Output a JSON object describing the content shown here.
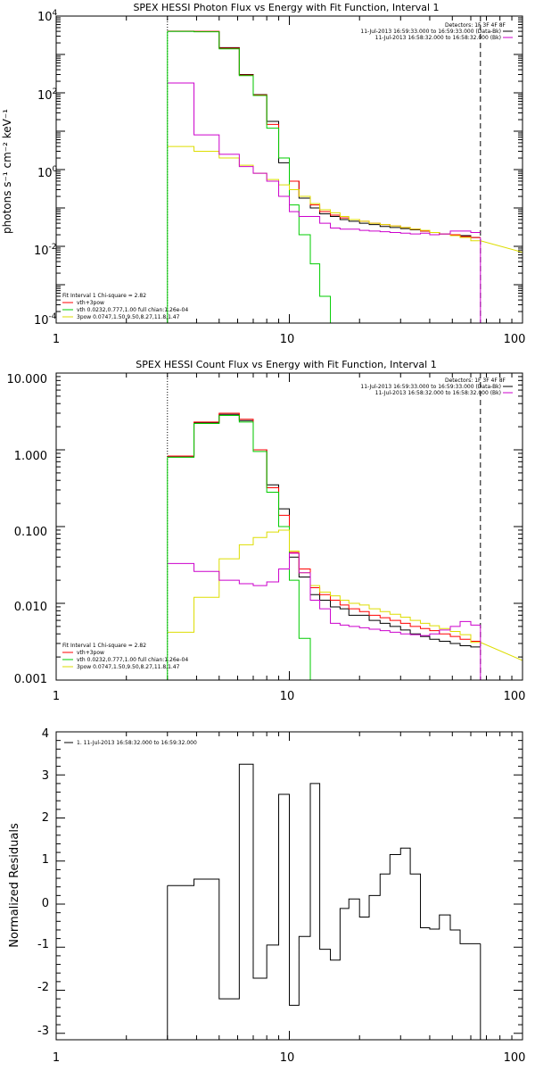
{
  "chart_data": [
    {
      "type": "line",
      "title": "SPEX HESSI Photon Flux vs Energy with Fit Function, Interval 1",
      "ylabel": "photons s⁻¹ cm⁻² keV⁻¹",
      "xlabel": "",
      "x_scale": "log",
      "y_scale": "log",
      "xlim": [
        1,
        100
      ],
      "ylim": [
        0.0001,
        10000
      ],
      "x_ticks": [
        "1",
        "10",
        "100"
      ],
      "y_ticks": [
        {
          "value": 0.0001,
          "base": "10",
          "exp": "-4"
        },
        {
          "value": 0.01,
          "base": "10",
          "exp": "-2"
        },
        {
          "value": 1,
          "base": "10",
          "exp": "0"
        },
        {
          "value": 100,
          "base": "10",
          "exp": "2"
        },
        {
          "value": 10000,
          "base": "10",
          "exp": "4"
        }
      ],
      "vlines": [
        {
          "x": 3.0,
          "style": "dotted",
          "color": "#000000"
        },
        {
          "x": 66.0,
          "style": "dashed",
          "color": "#000000"
        }
      ],
      "legend_top": {
        "position": "top-right",
        "entries": [
          {
            "text": "Detectors: 1F 3F 4F 8F",
            "color": null
          },
          {
            "text": "11-Jul-2013 16:59:33.000 to 16:59:33.000 (Data-Bk)",
            "color": "#000000"
          },
          {
            "text": "11-Jul-2013 16:58:32.000 to 16:58:32.000 (Bk)",
            "color": "#cc00cc"
          }
        ]
      },
      "legend_bottom": {
        "position": "bottom-left",
        "entries": [
          {
            "text": "Fit Interval 1    Chi-square = 2.82",
            "color": null
          },
          {
            "text": "vth+3pow",
            "color": "#ff0000"
          },
          {
            "text": "vth 0.0232,0.777,1.00   full chian:1.26e-04",
            "color": "#00cc00"
          },
          {
            "text": "3pow 0.0747,1.50,9.50,8.27,11.8,1.47",
            "color": "#dddd00"
          }
        ]
      },
      "bin_edges": [
        3.0,
        3.9,
        5.0,
        6.1,
        7.0,
        8.0,
        9.0,
        10.0,
        11.0,
        12.3,
        13.5,
        15.0,
        16.5,
        18.0,
        20.0,
        22.0,
        24.5,
        27.0,
        30.0,
        33.0,
        36.5,
        40.0,
        44.0,
        49.0,
        54.0,
        60.0,
        66.0
      ],
      "series": [
        {
          "color": "#000000",
          "values": [
            4000,
            3950,
            1500,
            300,
            90,
            18,
            1.5,
            0.5,
            0.18,
            0.1,
            0.07,
            0.06,
            0.05,
            0.045,
            0.04,
            0.037,
            0.033,
            0.031,
            0.029,
            0.027,
            0.025,
            0.023,
            0.021,
            0.02,
            0.019,
            0.017
          ]
        },
        {
          "color": "#ff0000",
          "values": [
            4050,
            4000,
            1450,
            290,
            88,
            15,
            2.0,
            0.5,
            0.2,
            0.12,
            0.08,
            0.065,
            0.055,
            0.05,
            0.045,
            0.04,
            0.037,
            0.034,
            0.031,
            0.028,
            0.025,
            0.023,
            0.021,
            0.02,
            0.018,
            0.017
          ]
        },
        {
          "color": "#00cc00",
          "values": [
            4000,
            3900,
            1400,
            280,
            85,
            12,
            2.0,
            0.12,
            0.02,
            0.0035,
            0.0005,
            null,
            null,
            null,
            null,
            null,
            null,
            null,
            null,
            null,
            null,
            null,
            null,
            null,
            null,
            null
          ]
        },
        {
          "color": "#dddd00",
          "values": [
            4.0,
            3.0,
            2.0,
            1.3,
            0.8,
            0.55,
            0.4,
            0.3,
            0.2,
            0.13,
            0.09,
            0.075,
            0.06,
            0.05,
            0.045,
            0.04,
            0.037,
            0.034,
            0.031,
            0.028,
            0.026,
            0.023,
            0.021,
            0.019,
            0.017,
            0.014
          ]
        },
        {
          "color": "#cc00cc",
          "values": [
            180,
            8,
            2.5,
            1.2,
            0.8,
            0.5,
            0.2,
            0.08,
            0.06,
            0.06,
            0.04,
            0.03,
            0.028,
            0.028,
            0.026,
            0.025,
            0.024,
            0.023,
            0.022,
            0.021,
            0.022,
            0.02,
            0.021,
            0.025,
            0.025,
            0.023
          ]
        }
      ],
      "tail": {
        "from": 66.0,
        "to": 100.0,
        "color": "#dddd00",
        "y_from": 0.014,
        "y_to": 0.007
      },
      "drops": [
        {
          "x": 66.0,
          "y": 0.017,
          "color": "#cc00cc"
        },
        {
          "x": 3.0,
          "y": 4000,
          "color": "#00cc00"
        }
      ]
    },
    {
      "type": "line",
      "title": "SPEX HESSI Count Flux vs Energy with Fit Function, Interval 1",
      "ylabel": "",
      "xlabel": "",
      "x_scale": "log",
      "y_scale": "log",
      "xlim": [
        1,
        100
      ],
      "ylim": [
        0.001,
        10.0
      ],
      "x_ticks": [
        "1",
        "10",
        "100"
      ],
      "y_ticks": [
        {
          "value": 0.001,
          "label": "0.001"
        },
        {
          "value": 0.01,
          "label": "0.010"
        },
        {
          "value": 0.1,
          "label": "0.100"
        },
        {
          "value": 1,
          "label": "1.000"
        },
        {
          "value": 10,
          "label": "10.000"
        }
      ],
      "vlines": [
        {
          "x": 3.0,
          "style": "dotted",
          "color": "#000000"
        },
        {
          "x": 66.0,
          "style": "dashed",
          "color": "#000000"
        }
      ],
      "legend_top": {
        "position": "top-right",
        "entries": [
          {
            "text": "Detectors: 1F 3F 4F 8F",
            "color": null
          },
          {
            "text": "11-Jul-2013 16:59:33.000 to 16:59:33.000 (Data-Bk)",
            "color": "#000000"
          },
          {
            "text": "11-Jul-2013 16:58:32.000 to 16:58:32.000 (Bk)",
            "color": "#cc00cc"
          }
        ]
      },
      "legend_bottom": {
        "position": "bottom-left",
        "entries": [
          {
            "text": "Fit Interval 1    Chi-square = 2.82",
            "color": null
          },
          {
            "text": "vth+3pow",
            "color": "#ff0000"
          },
          {
            "text": "vth 0.0232,0.777,1.00   full chian:1.26e-04",
            "color": "#00cc00"
          },
          {
            "text": "3pow 0.0747,1.50,9.50,8.27,11.8,1.47",
            "color": "#dddd00"
          }
        ]
      },
      "bin_edges": [
        3.0,
        3.9,
        5.0,
        6.1,
        7.0,
        8.0,
        9.0,
        10.0,
        11.0,
        12.3,
        13.5,
        15.0,
        16.5,
        18.0,
        20.0,
        22.0,
        24.5,
        27.0,
        30.0,
        33.0,
        36.5,
        40.0,
        44.0,
        49.0,
        54.0,
        60.0,
        66.0
      ],
      "series": [
        {
          "color": "#000000",
          "values": [
            0.82,
            2.25,
            2.9,
            2.4,
            1.0,
            0.35,
            0.17,
            0.04,
            0.022,
            0.013,
            0.011,
            0.009,
            0.0085,
            0.007,
            0.007,
            0.006,
            0.0055,
            0.005,
            0.0045,
            0.004,
            0.0037,
            0.0034,
            0.0032,
            0.003,
            0.0028,
            0.0027
          ]
        },
        {
          "color": "#ff0000",
          "values": [
            0.83,
            2.3,
            3.0,
            2.5,
            1.0,
            0.32,
            0.14,
            0.046,
            0.028,
            0.016,
            0.013,
            0.011,
            0.0095,
            0.0085,
            0.0078,
            0.007,
            0.0065,
            0.006,
            0.0055,
            0.005,
            0.0047,
            0.0044,
            0.004,
            0.0037,
            0.0034,
            0.0032
          ]
        },
        {
          "color": "#00cc00",
          "values": [
            0.8,
            2.2,
            2.8,
            2.3,
            0.95,
            0.28,
            0.1,
            0.02,
            0.0035,
            0.001,
            null,
            null,
            null,
            null,
            null,
            null,
            null,
            null,
            null,
            null,
            null,
            null,
            null,
            null,
            null,
            null
          ]
        },
        {
          "color": "#dddd00",
          "values": [
            0.0042,
            0.012,
            0.038,
            0.058,
            0.072,
            0.085,
            0.09,
            0.048,
            0.025,
            0.017,
            0.014,
            0.0125,
            0.011,
            0.01,
            0.0095,
            0.0085,
            0.0078,
            0.0072,
            0.0066,
            0.006,
            0.0055,
            0.0051,
            0.0047,
            0.0043,
            0.0039,
            0.0031
          ]
        },
        {
          "color": "#cc00cc",
          "values": [
            0.033,
            0.026,
            0.02,
            0.018,
            0.017,
            0.019,
            0.028,
            0.045,
            0.025,
            0.011,
            0.0085,
            0.0055,
            0.0052,
            0.005,
            0.0048,
            0.0046,
            0.0044,
            0.0042,
            0.004,
            0.0039,
            0.0038,
            0.004,
            0.0045,
            0.005,
            0.0058,
            0.0052
          ]
        }
      ],
      "tail": {
        "from": 66.0,
        "to": 100.0,
        "color": "#dddd00",
        "y_from": 0.0031,
        "y_to": 0.0018
      },
      "drops": [
        {
          "x": 66.0,
          "y": 0.0052,
          "color": "#cc00cc"
        },
        {
          "x": 3.0,
          "y": 0.8,
          "color": "#00cc00"
        }
      ]
    },
    {
      "type": "line",
      "title": "",
      "ylabel": "Normalized Residuals",
      "xlabel": "",
      "x_scale": "log",
      "y_scale": "linear",
      "xlim": [
        1,
        100
      ],
      "ylim": [
        -3.15,
        4.0
      ],
      "x_ticks": [
        "1",
        "10",
        "100"
      ],
      "y_ticks": [
        {
          "value": -3,
          "label": "-3"
        },
        {
          "value": -2,
          "label": "-2"
        },
        {
          "value": -1,
          "label": "-1"
        },
        {
          "value": 0,
          "label": "0"
        },
        {
          "value": 1,
          "label": "1"
        },
        {
          "value": 2,
          "label": "2"
        },
        {
          "value": 3,
          "label": "3"
        },
        {
          "value": 4,
          "label": "4"
        }
      ],
      "vlines": [],
      "legend_top": {
        "position": "top-left",
        "entries": [
          {
            "text": "1. 11-Jul-2013 16:58:32.000 to 16:59:32.000",
            "color": "#000000"
          }
        ]
      },
      "legend_bottom": {
        "position": "none",
        "entries": []
      },
      "bin_edges": [
        3.0,
        3.9,
        5.0,
        6.1,
        7.0,
        8.0,
        9.0,
        10.0,
        11.0,
        12.3,
        13.5,
        15.0,
        16.5,
        18.0,
        20.0,
        22.0,
        24.5,
        27.0,
        30.0,
        33.0,
        36.5,
        40.0,
        44.0,
        49.0,
        54.0,
        60.0,
        66.0
      ],
      "series": [
        {
          "color": "#000000",
          "values": [
            0.43,
            0.58,
            -2.2,
            3.25,
            -1.72,
            -0.95,
            2.55,
            -2.35,
            -0.75,
            2.8,
            -1.05,
            -1.3,
            -0.1,
            0.12,
            -0.3,
            0.2,
            0.7,
            1.15,
            1.3,
            0.7,
            -0.55,
            -0.58,
            -0.25,
            -0.6,
            -0.92,
            -0.92
          ]
        }
      ],
      "tail": null,
      "drops": [
        {
          "x": 3.0,
          "y": 0.43,
          "color": "#000000"
        },
        {
          "x": 66.0,
          "y": -0.92,
          "color": "#000000"
        }
      ]
    }
  ]
}
